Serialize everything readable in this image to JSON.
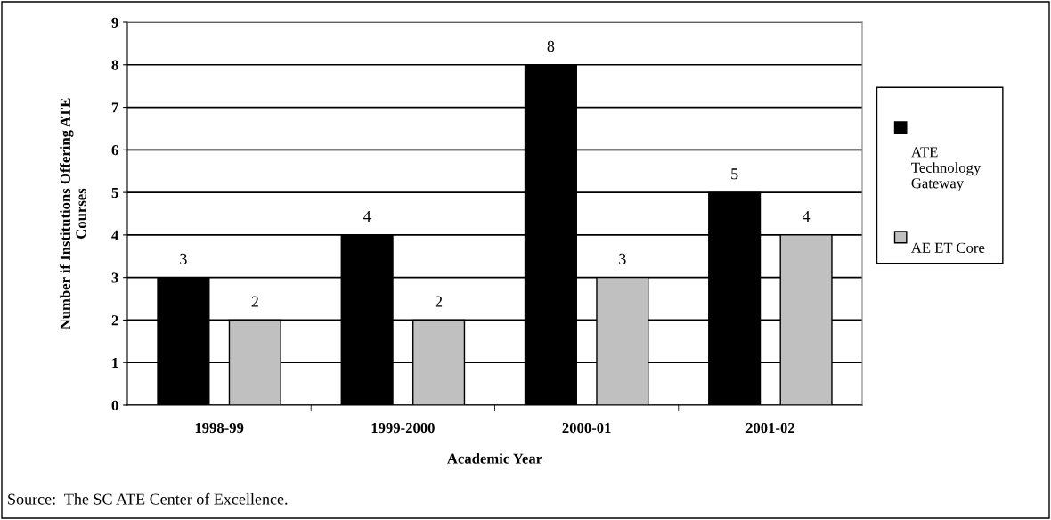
{
  "chart_data": {
    "type": "bar",
    "xlabel": "Academic Year",
    "ylabel": "Number if Institutions Offering ATE Courses",
    "categories": [
      "1998-99",
      "1999-2000",
      "2000-01",
      "2001-02"
    ],
    "series": [
      {
        "name": "ATE Technology Gateway",
        "color": "#000000",
        "values": [
          3,
          4,
          8,
          5
        ]
      },
      {
        "name": "AE ET Core",
        "color": "#c0c0c0",
        "values": [
          2,
          2,
          3,
          4
        ]
      }
    ],
    "ylim": [
      0,
      9
    ],
    "yticks": [
      0,
      1,
      2,
      3,
      4,
      5,
      6,
      7,
      8,
      9
    ],
    "grid": "y",
    "legend": "right",
    "data_labels": true,
    "annotations": [
      "Source:  The SC ATE Center of Excellence."
    ]
  }
}
